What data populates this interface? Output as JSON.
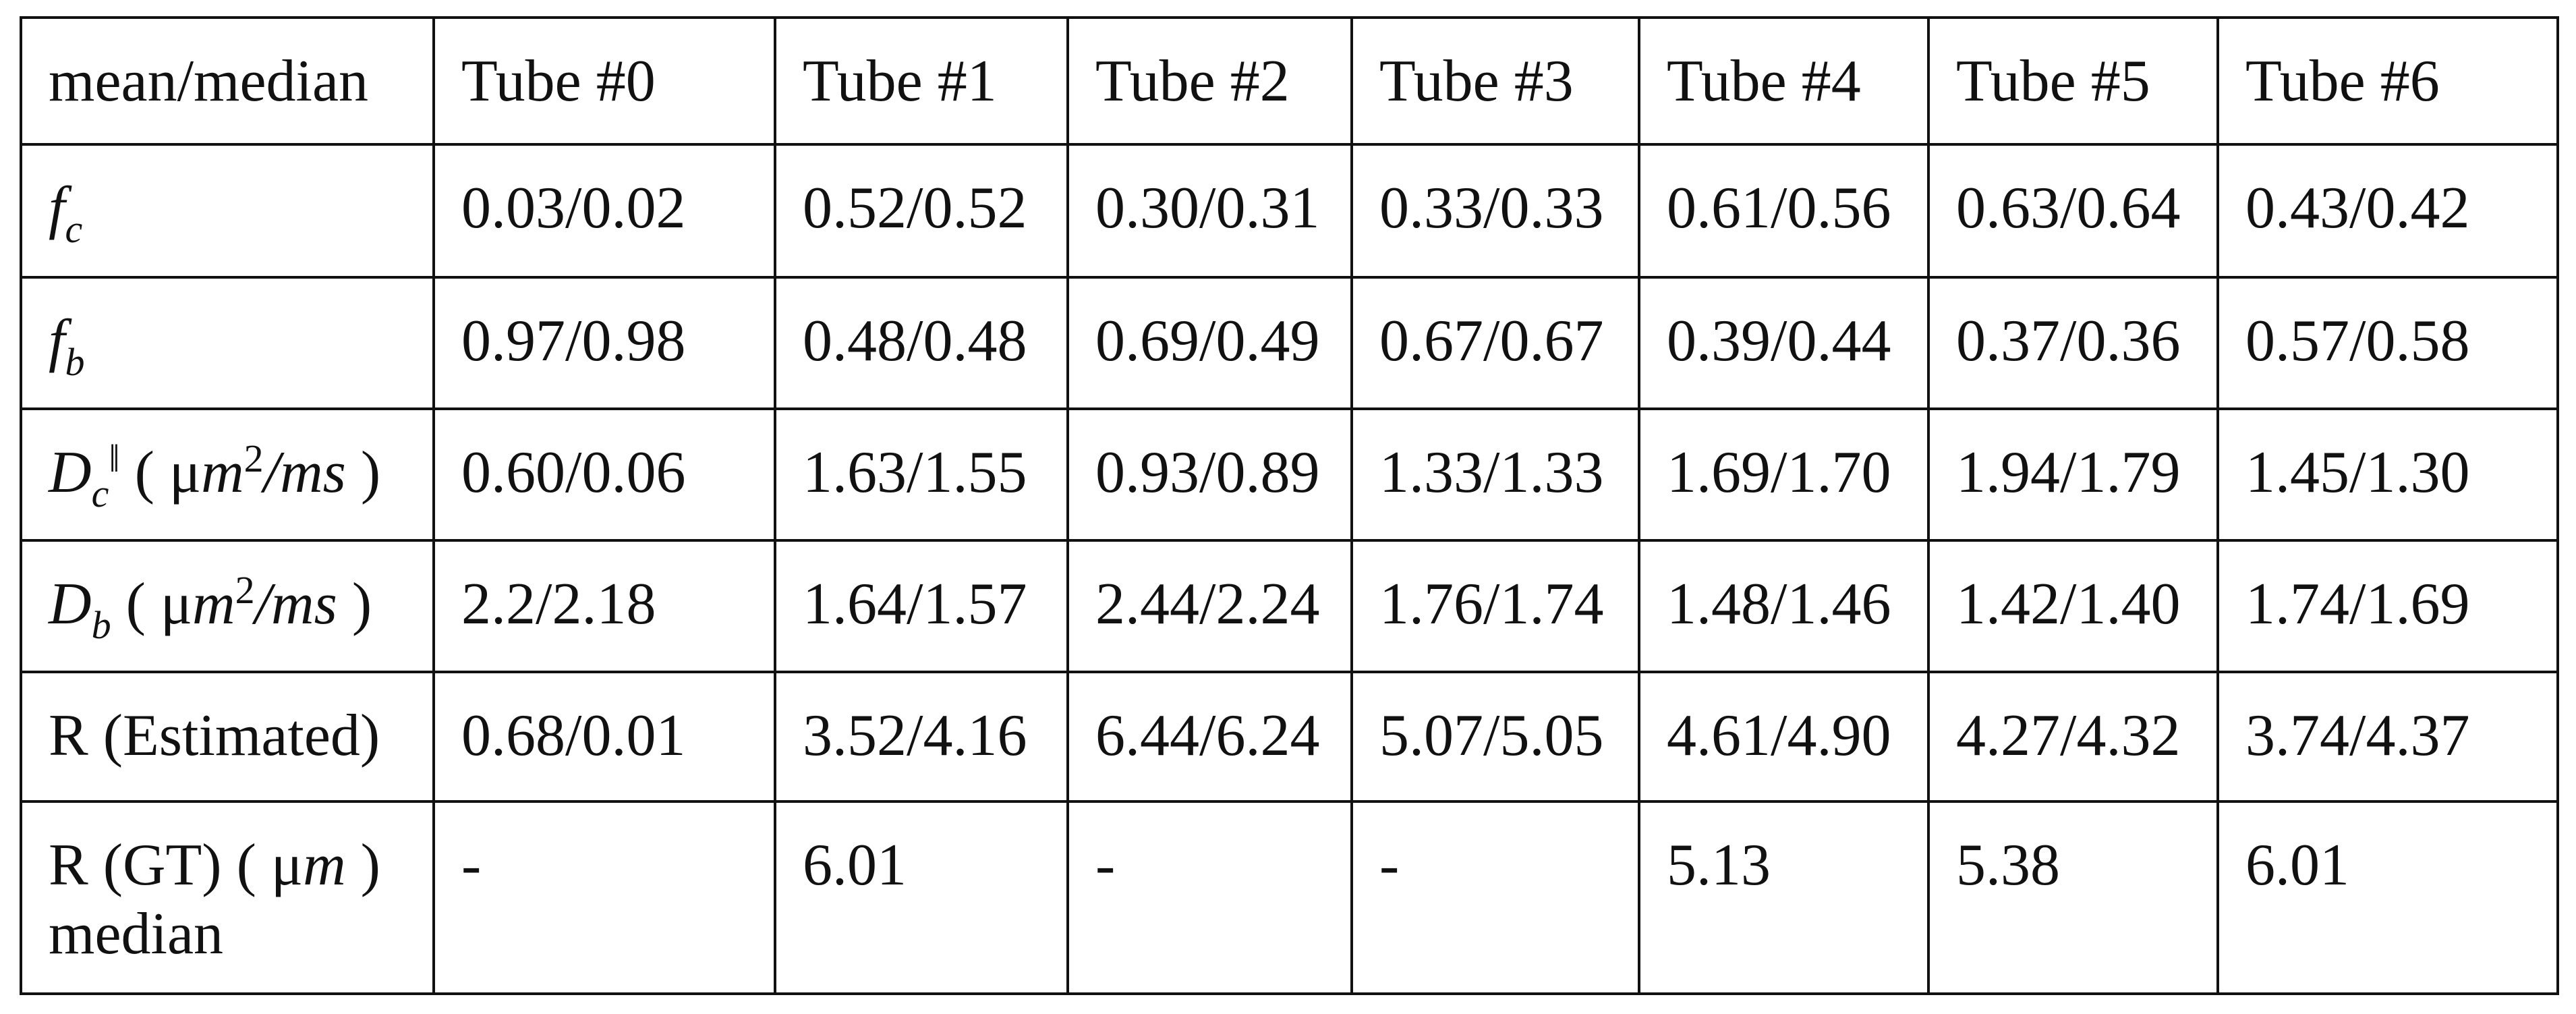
{
  "table": {
    "header": [
      "mean/median",
      "Tube #0",
      "Tube #1",
      "Tube #2",
      "Tube #3",
      "Tube #4",
      "Tube #5",
      "Tube #6"
    ],
    "rows": [
      {
        "label": [
          {
            "text": "f",
            "style": "italic"
          },
          {
            "text": "c",
            "style": "sub"
          }
        ],
        "cells": [
          "0.03/0.02",
          "0.52/0.52",
          "0.30/0.31",
          "0.33/0.33",
          "0.61/0.56",
          "0.63/0.64",
          "0.43/0.42"
        ]
      },
      {
        "label": [
          {
            "text": "f",
            "style": "italic"
          },
          {
            "text": "b",
            "style": "sub"
          }
        ],
        "cells": [
          "0.97/0.98",
          "0.48/0.48",
          "0.69/0.49",
          "0.67/0.67",
          "0.39/0.44",
          "0.37/0.36",
          "0.57/0.58"
        ]
      },
      {
        "label": [
          {
            "text": "D",
            "style": "italic"
          },
          {
            "text": "c",
            "style": "sub"
          },
          {
            "text": "‖",
            "style": "sup"
          },
          {
            "text": " ( μ",
            "style": "normal"
          },
          {
            "text": "m",
            "style": "italic"
          },
          {
            "text": "2",
            "style": "sup"
          },
          {
            "text": "/ms",
            "style": "italic"
          },
          {
            "text": " )",
            "style": "normal"
          }
        ],
        "cells": [
          "0.60/0.06",
          "1.63/1.55",
          "0.93/0.89",
          "1.33/1.33",
          "1.69/1.70",
          "1.94/1.79",
          "1.45/1.30"
        ]
      },
      {
        "label": [
          {
            "text": "D",
            "style": "italic"
          },
          {
            "text": "b",
            "style": "sub"
          },
          {
            "text": " ( μ",
            "style": "normal"
          },
          {
            "text": "m",
            "style": "italic"
          },
          {
            "text": "2",
            "style": "sup"
          },
          {
            "text": "/ms",
            "style": "italic"
          },
          {
            "text": " )",
            "style": "normal"
          }
        ],
        "cells": [
          "2.2/2.18",
          "1.64/1.57",
          "2.44/2.24",
          "1.76/1.74",
          "1.48/1.46",
          "1.42/1.40",
          "1.74/1.69"
        ]
      },
      {
        "label": [
          {
            "text": "R (Estimated)",
            "style": "normal"
          }
        ],
        "cells": [
          "0.68/0.01",
          "3.52/4.16",
          "6.44/6.24",
          "5.07/5.05",
          "4.61/4.90",
          "4.27/4.32",
          "3.74/4.37"
        ]
      },
      {
        "label": [
          {
            "text": "R (GT) ( μ",
            "style": "normal"
          },
          {
            "text": "m",
            "style": "italic"
          },
          {
            "text": " )",
            "style": "normal"
          },
          {
            "text": "median",
            "style": "line"
          }
        ],
        "cells": [
          "-",
          "6.01",
          "-",
          "-",
          "5.13",
          "5.38",
          "6.01"
        ]
      }
    ]
  }
}
